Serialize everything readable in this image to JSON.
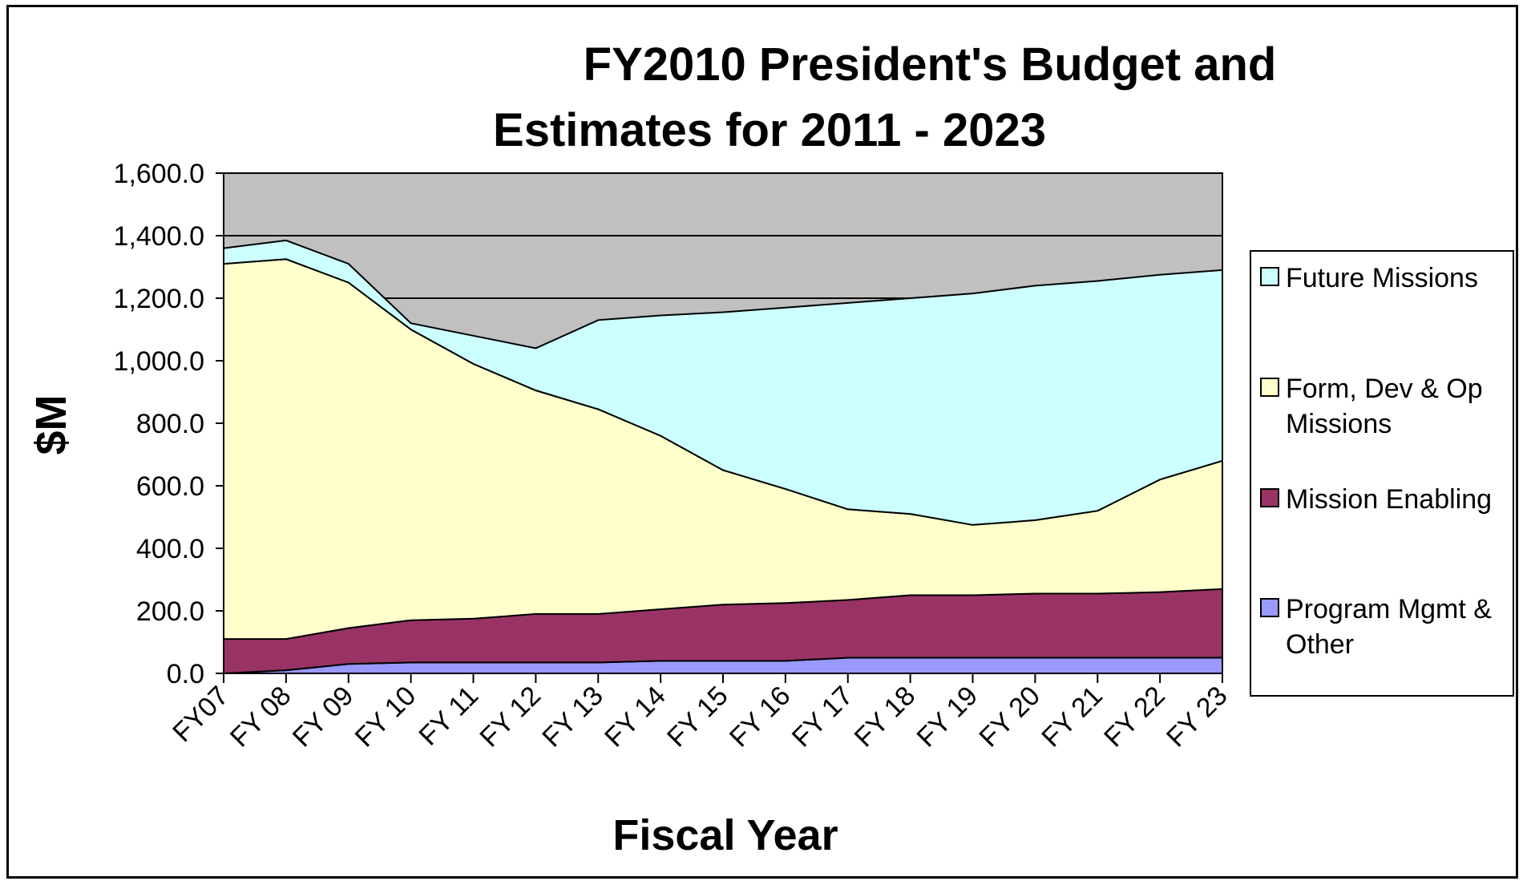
{
  "chart_data": {
    "type": "area",
    "stacked": true,
    "title_lines": [
      "FY2010 President's Budget and",
      "Estimates for 2011 - 2023"
    ],
    "xlabel": "Fiscal Year",
    "ylabel": "$M",
    "ylim": [
      0,
      1600
    ],
    "yticks": [
      "0.0",
      "200.0",
      "400.0",
      "600.0",
      "800.0",
      "1,000.0",
      "1,200.0",
      "1,400.0",
      "1,600.0"
    ],
    "ytick_values": [
      0,
      200,
      400,
      600,
      800,
      1000,
      1200,
      1400,
      1600
    ],
    "gridlines": [
      1400,
      1200
    ],
    "plot_background": "#c0c0c0",
    "categories": [
      "FY07",
      "FY 08",
      "FY 09",
      "FY 10",
      "FY 11",
      "FY 12",
      "FY 13",
      "FY 14",
      "FY 15",
      "FY 16",
      "FY 17",
      "FY 18",
      "FY 19",
      "FY 20",
      "FY 21",
      "FY 22",
      "FY 23"
    ],
    "series": [
      {
        "name": "Program Mgmt & Other",
        "color": "#9999ff",
        "values": [
          0,
          10,
          30,
          35,
          35,
          35,
          35,
          40,
          40,
          40,
          50,
          50,
          50,
          50,
          50,
          50,
          50
        ]
      },
      {
        "name": "Mission Enabling",
        "color": "#993366",
        "values": [
          110,
          100,
          115,
          135,
          140,
          155,
          155,
          165,
          180,
          185,
          185,
          200,
          200,
          205,
          205,
          210,
          220
        ]
      },
      {
        "name": "Form, Dev & Op Missions",
        "color": "#ffffcc",
        "values": [
          1200,
          1215,
          1105,
          930,
          815,
          715,
          655,
          555,
          430,
          365,
          290,
          260,
          225,
          235,
          265,
          360,
          410
        ]
      },
      {
        "name": "Future Missions",
        "color": "#ccffff",
        "values": [
          50,
          60,
          60,
          20,
          90,
          135,
          285,
          385,
          505,
          580,
          660,
          690,
          740,
          750,
          735,
          655,
          610
        ]
      }
    ],
    "legend_position": "right",
    "legend_entries": [
      {
        "lines": [
          "Future Missions"
        ],
        "color": "#ccffff"
      },
      {
        "lines": [
          "Form, Dev & Op",
          "Missions"
        ],
        "color": "#ffffcc"
      },
      {
        "lines": [
          "Mission Enabling"
        ],
        "color": "#993366"
      },
      {
        "lines": [
          "Program Mgmt &",
          "Other"
        ],
        "color": "#9999ff"
      }
    ]
  }
}
